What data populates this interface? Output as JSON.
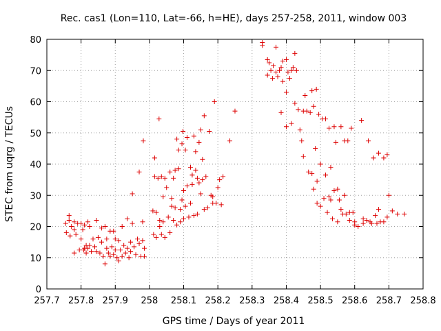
{
  "chart_data": {
    "type": "scatter",
    "title": "Rec. cas1 (Lon=110, Lat=-66, h=HE), days 257-258, 2011, window 003",
    "xlabel": "GPS time / Days of year 2011",
    "ylabel": "STEC from uqrg / TECUs",
    "xlim": [
      257.7,
      258.8
    ],
    "ylim": [
      0,
      80
    ],
    "xticks": [
      257.7,
      257.8,
      257.9,
      258.0,
      258.1,
      258.2,
      258.3,
      258.4,
      258.5,
      258.6,
      258.7,
      258.8
    ],
    "xtick_labels": [
      "257.7",
      "257.8",
      "257.9",
      "258",
      "258.1",
      "258.2",
      "258.3",
      "258.4",
      "258.5",
      "258.6",
      "258.7",
      "258.8"
    ],
    "yticks": [
      0,
      10,
      20,
      30,
      40,
      50,
      60,
      70,
      80
    ],
    "ytick_labels": [
      "0",
      "10",
      "20",
      "30",
      "40",
      "50",
      "60",
      "70",
      "80"
    ],
    "grid": true,
    "marker": "+",
    "color": "#dd0000",
    "series": [
      {
        "points": [
          [
            257.755,
            21.0
          ],
          [
            257.757,
            18.0
          ],
          [
            257.765,
            23.5
          ],
          [
            257.765,
            22.0
          ],
          [
            257.768,
            17.0
          ],
          [
            257.772,
            20.0
          ],
          [
            257.78,
            21.5
          ],
          [
            257.78,
            19.0
          ],
          [
            257.78,
            11.5
          ],
          [
            257.785,
            17.5
          ],
          [
            257.79,
            21.0
          ],
          [
            257.795,
            12.5
          ],
          [
            257.8,
            21.0
          ],
          [
            257.8,
            16.0
          ],
          [
            257.805,
            19.0
          ],
          [
            257.808,
            12.5
          ],
          [
            257.81,
            20.5
          ],
          [
            257.81,
            13.0
          ],
          [
            257.815,
            14.0
          ],
          [
            257.815,
            11.5
          ],
          [
            257.82,
            21.5
          ],
          [
            257.82,
            13.0
          ],
          [
            257.825,
            20.0
          ],
          [
            257.825,
            14.0
          ],
          [
            257.83,
            12.0
          ],
          [
            257.835,
            16.0
          ],
          [
            257.84,
            13.5
          ],
          [
            257.845,
            22.0
          ],
          [
            257.845,
            12.0
          ],
          [
            257.85,
            16.5
          ],
          [
            257.855,
            11.5
          ],
          [
            257.86,
            19.5
          ],
          [
            257.86,
            15.0
          ],
          [
            257.865,
            10.5
          ],
          [
            257.87,
            20.0
          ],
          [
            257.87,
            8.0
          ],
          [
            257.875,
            16.0
          ],
          [
            257.875,
            13.0
          ],
          [
            257.88,
            11.5
          ],
          [
            257.885,
            18.5
          ],
          [
            257.885,
            10.5
          ],
          [
            257.89,
            13.5
          ],
          [
            257.895,
            18.5
          ],
          [
            257.895,
            11.0
          ],
          [
            257.9,
            16.0
          ],
          [
            257.9,
            12.5
          ],
          [
            257.905,
            10.0
          ],
          [
            257.91,
            15.5
          ],
          [
            257.91,
            9.0
          ],
          [
            257.915,
            12.5
          ],
          [
            257.92,
            20.0
          ],
          [
            257.92,
            10.5
          ],
          [
            257.925,
            14.0
          ],
          [
            257.93,
            11.5
          ],
          [
            257.935,
            22.5
          ],
          [
            257.935,
            13.0
          ],
          [
            257.94,
            10.0
          ],
          [
            257.945,
            15.0
          ],
          [
            257.945,
            12.0
          ],
          [
            257.95,
            21.0
          ],
          [
            257.95,
            30.5
          ],
          [
            257.955,
            13.5
          ],
          [
            257.96,
            11.0
          ],
          [
            257.965,
            16.0
          ],
          [
            257.97,
            37.5
          ],
          [
            257.97,
            14.5
          ],
          [
            257.975,
            10.5
          ],
          [
            257.98,
            21.5
          ],
          [
            257.98,
            15.5
          ],
          [
            257.982,
            47.5
          ],
          [
            257.985,
            10.5
          ],
          [
            257.985,
            13.0
          ],
          [
            258.01,
            25.0
          ],
          [
            258.012,
            17.5
          ],
          [
            258.015,
            42.0
          ],
          [
            258.015,
            36.0
          ],
          [
            258.02,
            24.5
          ],
          [
            258.02,
            16.5
          ],
          [
            258.025,
            35.5
          ],
          [
            258.028,
            54.5
          ],
          [
            258.03,
            22.0
          ],
          [
            258.03,
            20.0
          ],
          [
            258.035,
            17.5
          ],
          [
            258.035,
            36.0
          ],
          [
            258.04,
            21.5
          ],
          [
            258.04,
            29.5
          ],
          [
            258.045,
            16.5
          ],
          [
            258.045,
            35.5
          ],
          [
            258.05,
            32.5
          ],
          [
            258.055,
            23.0
          ],
          [
            258.06,
            37.5
          ],
          [
            258.06,
            18.0
          ],
          [
            258.065,
            29.0
          ],
          [
            258.065,
            26.5
          ],
          [
            258.07,
            35.5
          ],
          [
            258.07,
            22.0
          ],
          [
            258.075,
            38.0
          ],
          [
            258.075,
            26.0
          ],
          [
            258.08,
            48.0
          ],
          [
            258.08,
            20.5
          ],
          [
            258.085,
            38.5
          ],
          [
            258.085,
            44.5
          ],
          [
            258.09,
            25.5
          ],
          [
            258.09,
            21.5
          ],
          [
            258.095,
            46.5
          ],
          [
            258.095,
            28.5
          ],
          [
            258.098,
            50.5
          ],
          [
            258.1,
            22.5
          ],
          [
            258.1,
            31.5
          ],
          [
            258.105,
            44.5
          ],
          [
            258.105,
            26.5
          ],
          [
            258.11,
            48.5
          ],
          [
            258.11,
            33.0
          ],
          [
            258.115,
            23.0
          ],
          [
            258.12,
            39.0
          ],
          [
            258.12,
            27.5
          ],
          [
            258.125,
            36.5
          ],
          [
            258.125,
            33.5
          ],
          [
            258.13,
            49.0
          ],
          [
            258.13,
            23.5
          ],
          [
            258.135,
            44.0
          ],
          [
            258.135,
            38.0
          ],
          [
            258.14,
            35.5
          ],
          [
            258.14,
            24.0
          ],
          [
            258.145,
            47.0
          ],
          [
            258.145,
            34.0
          ],
          [
            258.15,
            51.0
          ],
          [
            258.15,
            30.5
          ],
          [
            258.155,
            41.5
          ],
          [
            258.155,
            35.0
          ],
          [
            258.16,
            55.5
          ],
          [
            258.16,
            25.5
          ],
          [
            258.165,
            36.0
          ],
          [
            258.17,
            26.0
          ],
          [
            258.175,
            50.5
          ],
          [
            258.18,
            30.0
          ],
          [
            258.185,
            29.5
          ],
          [
            258.185,
            27.5
          ],
          [
            258.19,
            60.0
          ],
          [
            258.195,
            27.5
          ],
          [
            258.2,
            32.5
          ],
          [
            258.205,
            35.0
          ],
          [
            258.21,
            27.0
          ],
          [
            258.215,
            36.0
          ],
          [
            258.235,
            47.5
          ],
          [
            258.25,
            57.0
          ],
          [
            258.33,
            78.0
          ],
          [
            258.33,
            79.0
          ],
          [
            258.345,
            73.5
          ],
          [
            258.345,
            68.5
          ],
          [
            258.35,
            72.5
          ],
          [
            258.355,
            70.0
          ],
          [
            258.36,
            67.5
          ],
          [
            258.362,
            71.5
          ],
          [
            258.37,
            77.5
          ],
          [
            258.37,
            69.5
          ],
          [
            258.375,
            68.0
          ],
          [
            258.38,
            70.0
          ],
          [
            258.385,
            71.0
          ],
          [
            258.385,
            56.5
          ],
          [
            258.39,
            73.0
          ],
          [
            258.39,
            66.5
          ],
          [
            258.4,
            73.5
          ],
          [
            258.4,
            63.0
          ],
          [
            258.4,
            52.0
          ],
          [
            258.405,
            69.5
          ],
          [
            258.41,
            67.5
          ],
          [
            258.415,
            70.0
          ],
          [
            258.415,
            53.0
          ],
          [
            258.42,
            71.0
          ],
          [
            258.425,
            75.5
          ],
          [
            258.425,
            59.5
          ],
          [
            258.43,
            70.0
          ],
          [
            258.435,
            57.5
          ],
          [
            258.44,
            51.0
          ],
          [
            258.445,
            47.5
          ],
          [
            258.45,
            57.0
          ],
          [
            258.45,
            42.5
          ],
          [
            258.455,
            62.0
          ],
          [
            258.46,
            57.0
          ],
          [
            258.465,
            37.5
          ],
          [
            258.47,
            56.5
          ],
          [
            258.475,
            63.5
          ],
          [
            258.475,
            37.0
          ],
          [
            258.48,
            58.5
          ],
          [
            258.48,
            32.0
          ],
          [
            258.485,
            45.0
          ],
          [
            258.488,
            64.0
          ],
          [
            258.49,
            34.5
          ],
          [
            258.49,
            27.5
          ],
          [
            258.495,
            56.0
          ],
          [
            258.5,
            40.0
          ],
          [
            258.5,
            26.5
          ],
          [
            258.505,
            54.5
          ],
          [
            258.51,
            29.0
          ],
          [
            258.515,
            54.5
          ],
          [
            258.515,
            36.5
          ],
          [
            258.52,
            24.5
          ],
          [
            258.525,
            29.5
          ],
          [
            258.525,
            51.5
          ],
          [
            258.53,
            39.0
          ],
          [
            258.53,
            28.5
          ],
          [
            258.535,
            22.5
          ],
          [
            258.54,
            31.5
          ],
          [
            258.54,
            52.0
          ],
          [
            258.545,
            47.0
          ],
          [
            258.55,
            32.0
          ],
          [
            258.55,
            21.5
          ],
          [
            258.555,
            28.5
          ],
          [
            258.56,
            52.0
          ],
          [
            258.56,
            25.5
          ],
          [
            258.565,
            24.0
          ],
          [
            258.57,
            47.5
          ],
          [
            258.57,
            30.0
          ],
          [
            258.575,
            24.0
          ],
          [
            258.58,
            47.5
          ],
          [
            258.585,
            22.0
          ],
          [
            258.585,
            24.5
          ],
          [
            258.59,
            51.5
          ],
          [
            258.595,
            24.5
          ],
          [
            258.6,
            21.5
          ],
          [
            258.6,
            20.5
          ],
          [
            258.61,
            20.0
          ],
          [
            258.62,
            54.0
          ],
          [
            258.625,
            22.5
          ],
          [
            258.625,
            21.0
          ],
          [
            258.635,
            22.0
          ],
          [
            258.64,
            47.5
          ],
          [
            258.645,
            21.5
          ],
          [
            258.65,
            21.0
          ],
          [
            258.655,
            42.0
          ],
          [
            258.66,
            23.5
          ],
          [
            258.665,
            21.0
          ],
          [
            258.67,
            43.5
          ],
          [
            258.67,
            25.5
          ],
          [
            258.675,
            21.5
          ],
          [
            258.685,
            42.0
          ],
          [
            258.685,
            21.5
          ],
          [
            258.695,
            43.0
          ],
          [
            258.695,
            23.0
          ],
          [
            258.7,
            30.0
          ],
          [
            258.71,
            25.0
          ],
          [
            258.725,
            24.0
          ],
          [
            258.745,
            24.0
          ]
        ]
      }
    ]
  }
}
